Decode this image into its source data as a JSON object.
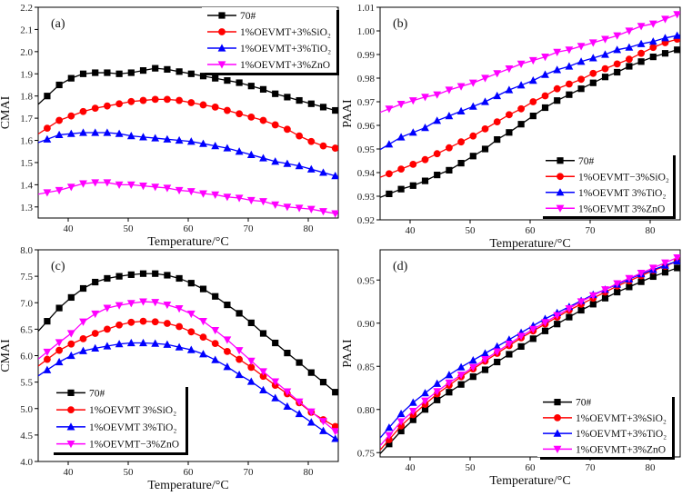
{
  "colors": {
    "70#": "#000000",
    "SiO2": "#ff0000",
    "TiO2": "#0000ff",
    "ZnO": "#ff00ff"
  },
  "chart_data": [
    {
      "type": "line",
      "panel_label": "(a)",
      "xlabel": "Temperature/°C",
      "ylabel": "CMAI",
      "xlim": [
        35,
        85
      ],
      "ylim": [
        1.25,
        2.2
      ],
      "legend": "top-right",
      "grid": false,
      "xticks": [
        "40",
        "50",
        "60",
        "70",
        "80"
      ],
      "yticks": [
        "1.3",
        "1.4",
        "1.5",
        "1.6",
        "1.7",
        "1.8",
        "1.9",
        "2.0",
        "2.1",
        "2.2"
      ],
      "x": [
        36.5,
        38.5,
        40.5,
        42.5,
        44.5,
        46.5,
        48.5,
        50.5,
        52.5,
        54.5,
        56.5,
        58.5,
        60.5,
        62.5,
        64.5,
        66.5,
        68.5,
        70.5,
        72.5,
        74.5,
        76.5,
        78.5,
        80.5,
        82.5,
        84.5
      ],
      "series": [
        {
          "name": "70#",
          "marker": "square",
          "color": "#000000",
          "values": [
            1.8,
            1.85,
            1.88,
            1.9,
            1.905,
            1.905,
            1.9,
            1.905,
            1.915,
            1.925,
            1.92,
            1.91,
            1.9,
            1.89,
            1.88,
            1.87,
            1.86,
            1.845,
            1.83,
            1.81,
            1.795,
            1.78,
            1.765,
            1.75,
            1.735
          ]
        },
        {
          "name": "1%OEVMT+3%SiO₂",
          "marker": "circle",
          "color": "#ff0000",
          "values": [
            1.655,
            1.69,
            1.71,
            1.73,
            1.745,
            1.755,
            1.765,
            1.775,
            1.78,
            1.785,
            1.785,
            1.78,
            1.77,
            1.76,
            1.75,
            1.735,
            1.72,
            1.705,
            1.69,
            1.67,
            1.65,
            1.62,
            1.595,
            1.575,
            1.565
          ]
        },
        {
          "name": "1%OEVMT+3%TiO₂",
          "marker": "triangle-up",
          "color": "#0000ff",
          "values": [
            1.605,
            1.625,
            1.63,
            1.635,
            1.635,
            1.635,
            1.63,
            1.62,
            1.615,
            1.61,
            1.605,
            1.6,
            1.595,
            1.585,
            1.575,
            1.565,
            1.55,
            1.535,
            1.52,
            1.505,
            1.495,
            1.485,
            1.47,
            1.455,
            1.44
          ]
        },
        {
          "name": "1%OEVMT+3%ZnO",
          "marker": "triangle-down",
          "color": "#ff00ff",
          "values": [
            1.365,
            1.375,
            1.39,
            1.405,
            1.41,
            1.41,
            1.4,
            1.4,
            1.395,
            1.39,
            1.385,
            1.375,
            1.37,
            1.36,
            1.355,
            1.345,
            1.34,
            1.33,
            1.325,
            1.31,
            1.3,
            1.295,
            1.29,
            1.28,
            1.27
          ]
        }
      ]
    },
    {
      "type": "line",
      "panel_label": "(b)",
      "xlabel": "Temperature/°C",
      "ylabel": "PAAI",
      "xlim": [
        35,
        85
      ],
      "ylim": [
        0.92,
        1.01
      ],
      "legend": "bottom-right",
      "grid": false,
      "xticks": [
        "40",
        "50",
        "60",
        "70",
        "80"
      ],
      "yticks": [
        "0.92",
        "0.93",
        "0.94",
        "0.95",
        "0.96",
        "0.97",
        "0.98",
        "0.99",
        "1.00",
        "1.01"
      ],
      "x": [
        36.5,
        38.5,
        40.5,
        42.5,
        44.5,
        46.5,
        48.5,
        50.5,
        52.5,
        54.5,
        56.5,
        58.5,
        60.5,
        62.5,
        64.5,
        66.5,
        68.5,
        70.5,
        72.5,
        74.5,
        76.5,
        78.5,
        80.5,
        82.5,
        84.5
      ],
      "series": [
        {
          "name": "70#",
          "marker": "square",
          "color": "#000000",
          "values": [
            0.931,
            0.933,
            0.9345,
            0.9365,
            0.939,
            0.941,
            0.944,
            0.947,
            0.95,
            0.954,
            0.957,
            0.9605,
            0.964,
            0.9675,
            0.9705,
            0.973,
            0.9755,
            0.978,
            0.9805,
            0.9825,
            0.985,
            0.987,
            0.989,
            0.9905,
            0.992
          ]
        },
        {
          "name": "1%OEVMT−3%SiO₂",
          "marker": "circle",
          "color": "#ff0000",
          "values": [
            0.9395,
            0.9415,
            0.9435,
            0.9455,
            0.948,
            0.9505,
            0.953,
            0.9555,
            0.9585,
            0.9615,
            0.9645,
            0.967,
            0.97,
            0.9725,
            0.9755,
            0.9775,
            0.9795,
            0.982,
            0.984,
            0.986,
            0.988,
            0.9905,
            0.993,
            0.995,
            0.9965
          ]
        },
        {
          "name": "1%OEVMT  3%TiO₂",
          "marker": "triangle-up",
          "color": "#0000ff",
          "values": [
            0.952,
            0.955,
            0.957,
            0.959,
            0.962,
            0.964,
            0.966,
            0.968,
            0.97,
            0.9725,
            0.975,
            0.977,
            0.979,
            0.9815,
            0.9835,
            0.985,
            0.987,
            0.9885,
            0.99,
            0.992,
            0.993,
            0.9945,
            0.9955,
            0.997,
            0.998
          ]
        },
        {
          "name": "1%OEVMT  3%ZnO",
          "marker": "triangle-down",
          "color": "#ff00ff",
          "values": [
            0.967,
            0.969,
            0.9705,
            0.972,
            0.973,
            0.975,
            0.9765,
            0.978,
            0.98,
            0.982,
            0.984,
            0.986,
            0.9875,
            0.989,
            0.991,
            0.992,
            0.9935,
            0.995,
            0.9965,
            0.998,
            1.0,
            1.002,
            1.003,
            1.005,
            1.007
          ]
        }
      ]
    },
    {
      "type": "line",
      "panel_label": "(c)",
      "xlabel": "Temperature/°C",
      "ylabel": "CMAI",
      "xlim": [
        35,
        85
      ],
      "ylim": [
        4.0,
        8.0
      ],
      "legend": "bottom-left",
      "grid": false,
      "xticks": [
        "40",
        "50",
        "60",
        "70",
        "80"
      ],
      "yticks": [
        "4.0",
        "4.5",
        "5.0",
        "5.5",
        "6.0",
        "6.5",
        "7.0",
        "7.5",
        "8.0"
      ],
      "x": [
        36.5,
        38.5,
        40.5,
        42.5,
        44.5,
        46.5,
        48.5,
        50.5,
        52.5,
        54.5,
        56.5,
        58.5,
        60.5,
        62.5,
        64.5,
        66.5,
        68.5,
        70.5,
        72.5,
        74.5,
        76.5,
        78.5,
        80.5,
        82.5,
        84.5
      ],
      "series": [
        {
          "name": "70#",
          "marker": "square",
          "color": "#000000",
          "values": [
            6.65,
            6.9,
            7.1,
            7.27,
            7.39,
            7.46,
            7.5,
            7.53,
            7.55,
            7.55,
            7.52,
            7.46,
            7.37,
            7.26,
            7.12,
            6.96,
            6.8,
            6.62,
            6.42,
            6.24,
            6.05,
            5.87,
            5.68,
            5.5,
            5.31
          ]
        },
        {
          "name": "1%OEVMT  3%SiO₂",
          "marker": "circle",
          "color": "#ff0000",
          "values": [
            5.93,
            6.1,
            6.22,
            6.32,
            6.42,
            6.5,
            6.58,
            6.63,
            6.65,
            6.64,
            6.61,
            6.55,
            6.45,
            6.35,
            6.23,
            6.08,
            5.93,
            5.78,
            5.61,
            5.44,
            5.28,
            5.11,
            4.93,
            4.79,
            4.66
          ]
        },
        {
          "name": "1%OEVMT  3%TiO₂",
          "marker": "triangle-up",
          "color": "#0000ff",
          "values": [
            5.73,
            5.88,
            6.0,
            6.09,
            6.14,
            6.18,
            6.22,
            6.24,
            6.24,
            6.23,
            6.21,
            6.16,
            6.11,
            6.03,
            5.92,
            5.79,
            5.64,
            5.51,
            5.35,
            5.2,
            5.04,
            4.9,
            4.74,
            4.58,
            4.43
          ]
        },
        {
          "name": "1%OEVMT−3%ZnO",
          "marker": "triangle-down",
          "color": "#ff00ff",
          "values": [
            6.07,
            6.25,
            6.42,
            6.64,
            6.79,
            6.9,
            6.95,
            6.99,
            7.02,
            7.01,
            6.96,
            6.89,
            6.79,
            6.65,
            6.48,
            6.3,
            6.1,
            5.9,
            5.7,
            5.51,
            5.32,
            5.13,
            4.94,
            4.76,
            4.57
          ]
        }
      ]
    },
    {
      "type": "line",
      "panel_label": "(d)",
      "xlabel": "Temperature/°C",
      "ylabel": "PAAI",
      "xlim": [
        35,
        85
      ],
      "ylim": [
        0.745,
        0.985
      ],
      "legend": "bottom-right",
      "grid": false,
      "xticks": [
        "40",
        "50",
        "60",
        "70",
        "80"
      ],
      "yticks": [
        "0.75",
        "0.80",
        "0.85",
        "0.90",
        "0.95"
      ],
      "x": [
        36.5,
        38.5,
        40.5,
        42.5,
        44.5,
        46.5,
        48.5,
        50.5,
        52.5,
        54.5,
        56.5,
        58.5,
        60.5,
        62.5,
        64.5,
        66.5,
        68.5,
        70.5,
        72.5,
        74.5,
        76.5,
        78.5,
        80.5,
        82.5,
        84.5
      ],
      "series": [
        {
          "name": "70#",
          "marker": "square",
          "color": "#000000",
          "values": [
            0.76,
            0.775,
            0.788,
            0.8,
            0.811,
            0.82,
            0.829,
            0.838,
            0.846,
            0.855,
            0.864,
            0.873,
            0.882,
            0.891,
            0.899,
            0.907,
            0.915,
            0.922,
            0.929,
            0.936,
            0.942,
            0.948,
            0.954,
            0.959,
            0.964
          ]
        },
        {
          "name": "1%OEVMT+3%SiO₂",
          "marker": "circle",
          "color": "#ff0000",
          "values": [
            0.765,
            0.781,
            0.794,
            0.806,
            0.818,
            0.828,
            0.838,
            0.847,
            0.856,
            0.865,
            0.874,
            0.883,
            0.891,
            0.899,
            0.907,
            0.915,
            0.922,
            0.929,
            0.936,
            0.943,
            0.949,
            0.955,
            0.961,
            0.966,
            0.972
          ]
        },
        {
          "name": "1%OEVMT+3%TiO₂",
          "marker": "triangle-up",
          "color": "#0000ff",
          "values": [
            0.779,
            0.795,
            0.808,
            0.819,
            0.83,
            0.84,
            0.849,
            0.857,
            0.865,
            0.873,
            0.881,
            0.889,
            0.897,
            0.905,
            0.912,
            0.919,
            0.926,
            0.933,
            0.939,
            0.945,
            0.951,
            0.957,
            0.962,
            0.967,
            0.972
          ]
        },
        {
          "name": "1%OEVMT+3%ZnO",
          "marker": "triangle-down",
          "color": "#ff00ff",
          "values": [
            0.77,
            0.786,
            0.798,
            0.81,
            0.821,
            0.831,
            0.84,
            0.849,
            0.858,
            0.867,
            0.876,
            0.885,
            0.893,
            0.901,
            0.909,
            0.917,
            0.925,
            0.932,
            0.939,
            0.946,
            0.952,
            0.958,
            0.964,
            0.97,
            0.976
          ]
        }
      ]
    }
  ]
}
